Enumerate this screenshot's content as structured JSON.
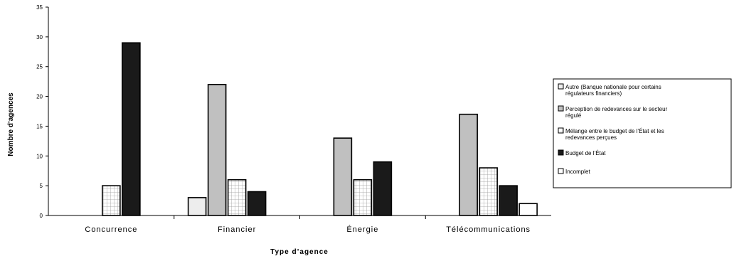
{
  "chart_data": {
    "type": "bar",
    "title": "",
    "xlabel": "Type d’agence",
    "ylabel": "Nombre d’agences",
    "ylim": [
      0,
      35
    ],
    "yticks": [
      0,
      5,
      10,
      15,
      20,
      25,
      30,
      35
    ],
    "grid": false,
    "legend_position": "right",
    "categories": [
      "Concurrence",
      "Financier",
      "Énergie",
      "Télécommunications"
    ],
    "series": [
      {
        "name": "Autre (Banque nationale pour certains régulateurs financiers)",
        "fill": "#ededed",
        "pattern": "none",
        "values": [
          0,
          3,
          0,
          0
        ]
      },
      {
        "name": "Perception de redevances sur le secteur régulé",
        "fill": "#c0c0c0",
        "pattern": "none",
        "values": [
          0,
          22,
          13,
          17
        ]
      },
      {
        "name": "Mélange entre le budget de l’État et les redevances perçues",
        "fill": "#ffffff",
        "pattern": "grid",
        "values": [
          5,
          6,
          6,
          8
        ]
      },
      {
        "name": "Budget de l’État",
        "fill": "#1a1a1a",
        "pattern": "none",
        "values": [
          29,
          4,
          9,
          5
        ]
      },
      {
        "name": "Incomplet",
        "fill": "#ffffff",
        "pattern": "none",
        "values": [
          0,
          0,
          0,
          2
        ]
      }
    ]
  }
}
